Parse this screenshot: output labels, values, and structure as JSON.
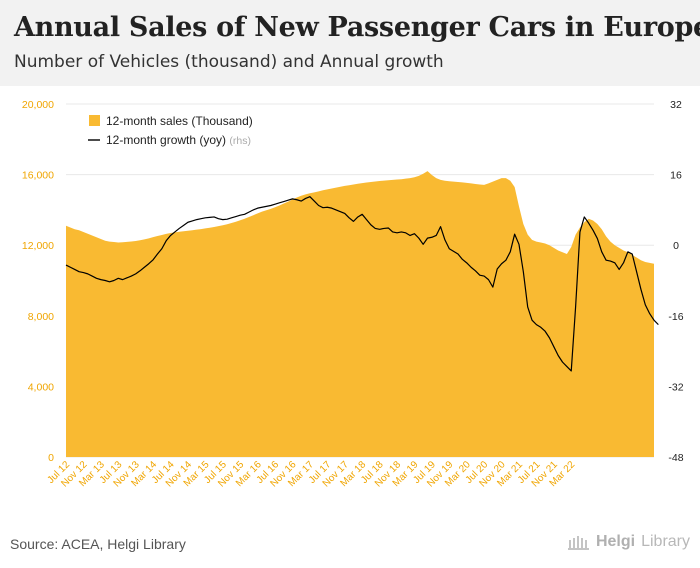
{
  "header": {
    "title": "Annual Sales of New Passenger Cars in Europe",
    "subtitle": "Number of Vehicles (thousand) and Annual growth"
  },
  "footer": {
    "source": "Source: ACEA, Helgi Library",
    "brand_prefix": "Helgi",
    "brand_suffix": "Library"
  },
  "colors": {
    "area": "#f9ba32",
    "line": "#000000",
    "grid": "#e8e8e8",
    "left_axis_text": "#f0a500"
  },
  "chart_data": {
    "type": "area",
    "title": "Annual Sales of New Passenger Cars in Europe",
    "subtitle": "Number of Vehicles (thousand) and Annual growth",
    "x_tick_labels": [
      "Jul 12",
      "Nov 12",
      "Mar 13",
      "Jul 13",
      "Nov 13",
      "Mar 14",
      "Jul 14",
      "Nov 14",
      "Mar 15",
      "Jul 15",
      "Nov 15",
      "Mar 16",
      "Jul 16",
      "Nov 16",
      "Mar 17",
      "Jul 17",
      "Nov 17",
      "Mar 18",
      "Jul 18",
      "Nov 18",
      "Mar 19",
      "Jul 19",
      "Nov 19",
      "Mar 20",
      "Jul 20",
      "Nov 20",
      "Mar 21",
      "Jul 21",
      "Nov 21",
      "Mar 22"
    ],
    "x_start": "Jul 12",
    "x_end": "Jun 22",
    "y_left": {
      "range": [
        0,
        20000
      ],
      "ticks": [
        "0",
        "4,000",
        "8,000",
        "12,000",
        "16,000",
        "20,000"
      ]
    },
    "y_right": {
      "range": [
        -48,
        32
      ],
      "ticks": [
        "-48",
        "-32",
        "-16",
        "0",
        "16",
        "32"
      ]
    },
    "legend": {
      "position": "top-left",
      "items": [
        {
          "label": "12-month sales (Thousand)",
          "kind": "area"
        },
        {
          "label": "12-month growth (yoy)",
          "suffix": "(rhs)",
          "kind": "line"
        }
      ]
    },
    "grid": true,
    "series": [
      {
        "name": "12-month sales (Thousand)",
        "axis": "left",
        "kind": "area",
        "values": [
          13100,
          13000,
          12900,
          12850,
          12750,
          12650,
          12550,
          12450,
          12350,
          12250,
          12200,
          12180,
          12150,
          12170,
          12190,
          12210,
          12240,
          12280,
          12330,
          12390,
          12460,
          12520,
          12580,
          12640,
          12690,
          12730,
          12760,
          12790,
          12820,
          12850,
          12880,
          12910,
          12950,
          12990,
          13030,
          13080,
          13130,
          13190,
          13260,
          13330,
          13410,
          13500,
          13600,
          13700,
          13800,
          13900,
          13980,
          14060,
          14150,
          14250,
          14360,
          14470,
          14590,
          14700,
          14800,
          14880,
          14940,
          14990,
          15050,
          15110,
          15160,
          15210,
          15260,
          15310,
          15360,
          15400,
          15440,
          15480,
          15520,
          15550,
          15580,
          15610,
          15640,
          15660,
          15680,
          15700,
          15720,
          15740,
          15770,
          15800,
          15850,
          15930,
          16050,
          16200,
          15980,
          15800,
          15700,
          15650,
          15620,
          15600,
          15580,
          15560,
          15530,
          15500,
          15470,
          15440,
          15420,
          15500,
          15600,
          15700,
          15800,
          15800,
          15650,
          15300,
          14200,
          13200,
          12600,
          12300,
          12200,
          12150,
          12100,
          12000,
          11850,
          11700,
          11600,
          11500,
          11900,
          12600,
          13000,
          13300,
          13500,
          13400,
          13200,
          12900,
          12500,
          12200,
          12000,
          11850,
          11700,
          11600,
          11450,
          11300,
          11150,
          11050,
          11000,
          10950
        ]
      },
      {
        "name": "12-month growth (yoy)",
        "axis": "right",
        "kind": "line",
        "values": [
          -4.5,
          -5.0,
          -5.5,
          -6.0,
          -6.2,
          -6.5,
          -7.0,
          -7.5,
          -7.8,
          -8.0,
          -8.3,
          -8.0,
          -7.5,
          -7.8,
          -7.4,
          -7.0,
          -6.5,
          -5.8,
          -5.0,
          -4.2,
          -3.3,
          -2.0,
          -0.8,
          1.0,
          2.2,
          3.0,
          3.8,
          4.5,
          5.2,
          5.5,
          5.8,
          6.0,
          6.2,
          6.3,
          6.4,
          6.0,
          5.8,
          5.9,
          6.2,
          6.5,
          6.8,
          7.0,
          7.5,
          8.0,
          8.4,
          8.6,
          8.8,
          9.0,
          9.3,
          9.6,
          9.9,
          10.2,
          10.5,
          10.3,
          10.0,
          10.6,
          11.0,
          10.0,
          9.0,
          8.5,
          8.6,
          8.4,
          8.0,
          7.6,
          7.2,
          6.2,
          5.4,
          6.4,
          7.0,
          5.8,
          4.6,
          3.8,
          3.6,
          3.8,
          3.9,
          3.0,
          2.8,
          3.0,
          2.8,
          2.2,
          2.6,
          1.6,
          0.2,
          1.6,
          1.8,
          2.2,
          4.2,
          1.2,
          -0.8,
          -1.4,
          -2.0,
          -3.2,
          -4.0,
          -5.0,
          -5.8,
          -6.8,
          -7.0,
          -7.8,
          -9.5,
          -5.4,
          -4.2,
          -3.4,
          -1.5,
          2.5,
          0.2,
          -6.0,
          -14.0,
          -17.0,
          -18.0,
          -18.6,
          -19.5,
          -21.0,
          -23.0,
          -25.0,
          -26.5,
          -27.5,
          -28.5,
          -14.0,
          3.0,
          6.4,
          5.0,
          3.4,
          1.5,
          -1.5,
          -3.4,
          -3.6,
          -4.0,
          -5.5,
          -4.0,
          -1.5,
          -2.0,
          -6.0,
          -10.0,
          -13.5,
          -15.5,
          -17.0,
          -18.0
        ]
      }
    ]
  }
}
